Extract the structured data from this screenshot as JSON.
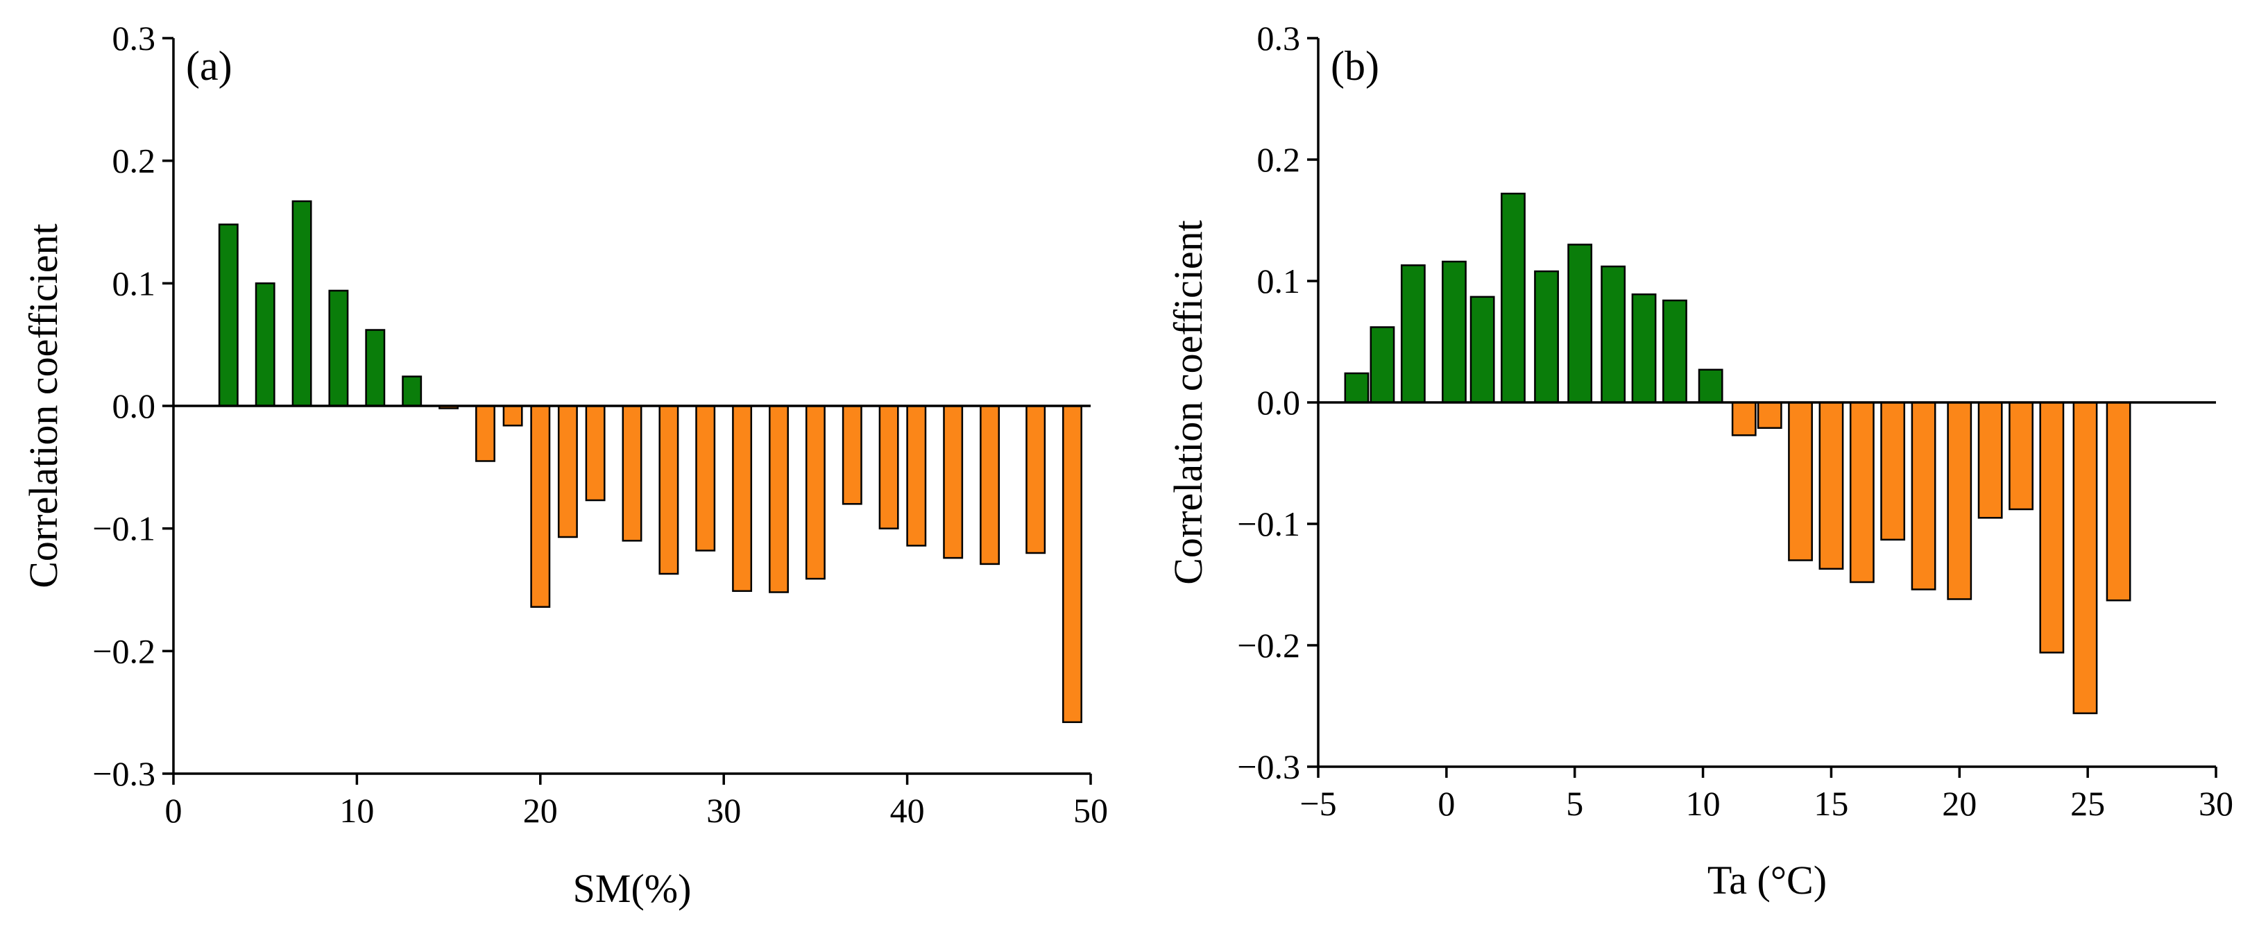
{
  "colors": {
    "positive": "#0a7d0a",
    "negative": "#fb8618"
  },
  "chart_data": [
    {
      "type": "bar",
      "panel_label": "(a)",
      "xlabel": "SM(%)",
      "ylabel": "Correlation coefficient",
      "xlim": [
        0,
        50
      ],
      "ylim": [
        -0.3,
        0.3
      ],
      "x_ticks": [
        0,
        10,
        20,
        30,
        40,
        50
      ],
      "x_tick_labels": [
        "0",
        "10",
        "20",
        "30",
        "40",
        "50"
      ],
      "y_ticks": [
        -0.3,
        -0.2,
        -0.1,
        0.0,
        0.1,
        0.2,
        0.3
      ],
      "y_tick_labels": [
        "−0.3",
        "−0.2",
        "−0.1",
        "0.0",
        "0.1",
        "0.2",
        "0.3"
      ],
      "bar_width": 1.0,
      "x": [
        3,
        5,
        7,
        9,
        11,
        13,
        15,
        17,
        18.5,
        20,
        21.5,
        23,
        25,
        27,
        29,
        31,
        33,
        35,
        37,
        39,
        40.5,
        42.5,
        44.5,
        47,
        49
      ],
      "values": [
        0.148,
        0.1,
        0.167,
        0.094,
        0.062,
        0.024,
        -0.002,
        -0.045,
        -0.016,
        -0.164,
        -0.107,
        -0.077,
        -0.11,
        -0.137,
        -0.118,
        -0.151,
        -0.152,
        -0.141,
        -0.08,
        -0.1,
        -0.114,
        -0.124,
        -0.129,
        -0.12,
        -0.258
      ]
    },
    {
      "type": "bar",
      "panel_label": "(b)",
      "xlabel": "Ta (°C)",
      "ylabel": "Correlation coefficient",
      "xlim": [
        -5,
        30
      ],
      "ylim": [
        -0.3,
        0.3
      ],
      "x_ticks": [
        -5,
        0,
        5,
        10,
        15,
        20,
        25,
        30
      ],
      "x_tick_labels": [
        "−5",
        "0",
        "5",
        "10",
        "15",
        "20",
        "25",
        "30"
      ],
      "y_ticks": [
        -0.3,
        -0.2,
        -0.1,
        0.0,
        0.1,
        0.2,
        0.3
      ],
      "y_tick_labels": [
        "−0.3",
        "−0.2",
        "−0.1",
        "0.0",
        "0.1",
        "0.2",
        "0.3"
      ],
      "bar_width": 0.9,
      "x": [
        -3.5,
        -2.5,
        -1.3,
        0.3,
        1.4,
        2.6,
        3.9,
        5.2,
        6.5,
        7.7,
        8.9,
        10.3,
        11.6,
        12.6,
        13.8,
        15.0,
        16.2,
        17.4,
        18.6,
        20.0,
        21.2,
        22.4,
        23.6,
        24.9,
        26.2
      ],
      "values": [
        0.024,
        0.062,
        0.113,
        0.116,
        0.087,
        0.172,
        0.108,
        0.13,
        0.112,
        0.089,
        0.084,
        0.027,
        -0.027,
        -0.021,
        -0.13,
        -0.137,
        -0.148,
        -0.113,
        -0.154,
        -0.162,
        -0.095,
        -0.088,
        -0.206,
        -0.256,
        -0.163
      ]
    }
  ]
}
